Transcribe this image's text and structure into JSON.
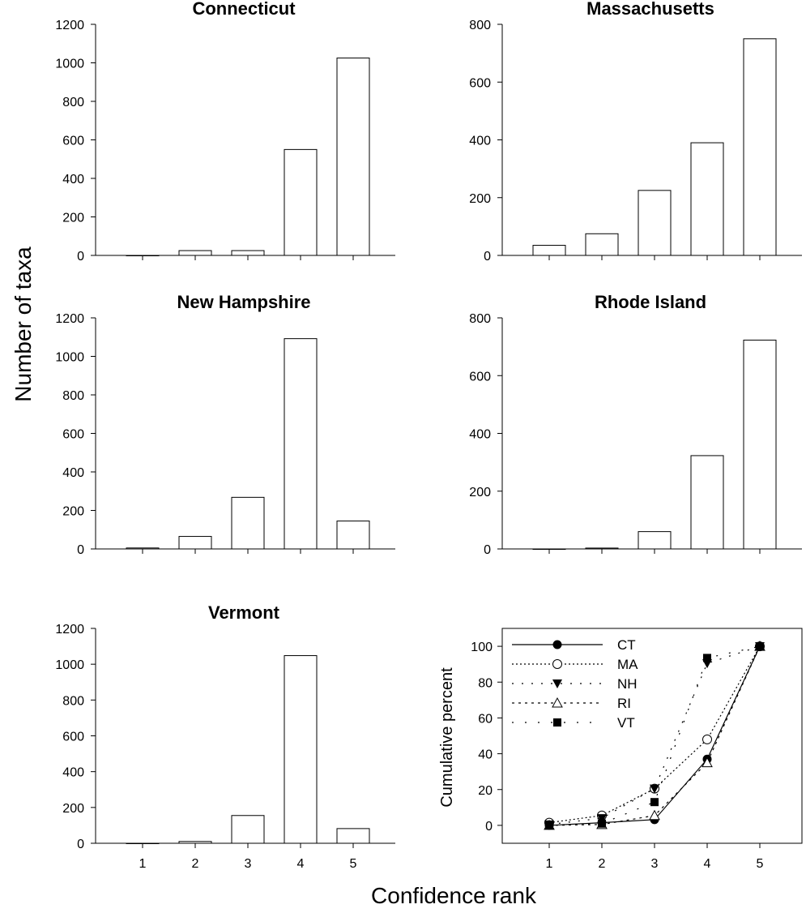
{
  "figure": {
    "ylabel": "Number of taxa",
    "xlabel": "Confidence rank"
  },
  "chart_data": [
    {
      "type": "bar",
      "title": "Connecticut",
      "categories": [
        "1",
        "2",
        "3",
        "4",
        "5"
      ],
      "values": [
        0,
        25,
        25,
        550,
        1025
      ],
      "ylim": [
        0,
        1200
      ],
      "yticks": [
        0,
        200,
        400,
        600,
        800,
        1000,
        1200
      ],
      "xlabel": "",
      "ylabel": ""
    },
    {
      "type": "bar",
      "title": "Massachusetts",
      "categories": [
        "1",
        "2",
        "3",
        "4",
        "5"
      ],
      "values": [
        35,
        75,
        225,
        390,
        750
      ],
      "ylim": [
        0,
        800
      ],
      "yticks": [
        0,
        200,
        400,
        600,
        800
      ],
      "xlabel": "",
      "ylabel": ""
    },
    {
      "type": "bar",
      "title": "New Hampshire",
      "categories": [
        "1",
        "2",
        "3",
        "4",
        "5"
      ],
      "values": [
        5,
        65,
        268,
        1092,
        145
      ],
      "ylim": [
        0,
        1200
      ],
      "yticks": [
        0,
        200,
        400,
        600,
        800,
        1000,
        1200
      ],
      "xlabel": "",
      "ylabel": ""
    },
    {
      "type": "bar",
      "title": "Rhode Island",
      "categories": [
        "1",
        "2",
        "3",
        "4",
        "5"
      ],
      "values": [
        0,
        3,
        60,
        323,
        723
      ],
      "ylim": [
        0,
        800
      ],
      "yticks": [
        0,
        200,
        400,
        600,
        800
      ],
      "xlabel": "",
      "ylabel": ""
    },
    {
      "type": "bar",
      "title": "Vermont",
      "categories": [
        "1",
        "2",
        "3",
        "4",
        "5"
      ],
      "values": [
        0,
        10,
        155,
        1048,
        82
      ],
      "ylim": [
        0,
        1200
      ],
      "yticks": [
        0,
        200,
        400,
        600,
        800,
        1000,
        1200
      ],
      "xlabel": "",
      "ylabel": ""
    },
    {
      "type": "line",
      "title": "",
      "x": [
        1,
        2,
        3,
        4,
        5
      ],
      "xticks": [
        1,
        2,
        3,
        4,
        5
      ],
      "ylim": [
        -10,
        110
      ],
      "yticks": [
        0,
        20,
        40,
        60,
        80,
        100
      ],
      "ylabel": "Cumulative percent",
      "xlabel": "",
      "legend": "top-left",
      "series": [
        {
          "name": "CT",
          "values": [
            0,
            1.5,
            3.2,
            37,
            100
          ],
          "marker": "filled-circle",
          "line": "solid"
        },
        {
          "name": "MA",
          "values": [
            1.5,
            5.5,
            20.5,
            48,
            100
          ],
          "marker": "open-circle",
          "line": "dotted"
        },
        {
          "name": "NH",
          "values": [
            0.5,
            4,
            20.5,
            90.5,
            100
          ],
          "marker": "filled-triangle-down",
          "line": "dash-dot"
        },
        {
          "name": "RI",
          "values": [
            0,
            0.5,
            5.5,
            35,
            100
          ],
          "marker": "open-triangle-up",
          "line": "dash-dot-dot"
        },
        {
          "name": "VT",
          "values": [
            0,
            1,
            13,
            93.5,
            100
          ],
          "marker": "filled-square",
          "line": "sparse-dash"
        }
      ]
    }
  ]
}
